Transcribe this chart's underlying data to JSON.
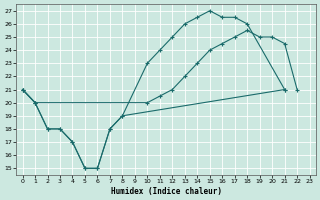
{
  "xlabel": "Humidex (Indice chaleur)",
  "xlim": [
    -0.5,
    23.5
  ],
  "ylim": [
    14.5,
    27.5
  ],
  "xticks": [
    0,
    1,
    2,
    3,
    4,
    5,
    6,
    7,
    8,
    9,
    10,
    11,
    12,
    13,
    14,
    15,
    16,
    17,
    18,
    19,
    20,
    21,
    22,
    23
  ],
  "yticks": [
    15,
    16,
    17,
    18,
    19,
    20,
    21,
    22,
    23,
    24,
    25,
    26,
    27
  ],
  "background_color": "#cce8e0",
  "line_color": "#1a6b6b",
  "grid_color": "#ffffff",
  "line1": {
    "x": [
      0,
      1,
      2,
      3,
      4,
      5,
      6,
      7,
      8,
      21
    ],
    "y": [
      21,
      20,
      18,
      18,
      17,
      15,
      15,
      18,
      19,
      21
    ]
  },
  "line2": {
    "x": [
      0,
      1,
      2,
      3,
      4,
      5,
      6,
      7,
      8,
      10,
      11,
      12,
      13,
      14,
      15,
      16,
      17,
      18,
      21
    ],
    "y": [
      21,
      20,
      18,
      18,
      17,
      15,
      15,
      18,
      19,
      23,
      24,
      25,
      26,
      26.5,
      27,
      26.5,
      26.5,
      26,
      21
    ]
  },
  "line3": {
    "x": [
      0,
      1,
      10,
      11,
      12,
      13,
      14,
      15,
      16,
      17,
      18,
      19,
      20,
      21,
      22
    ],
    "y": [
      21,
      20,
      20,
      20.5,
      21,
      22,
      23,
      24,
      24.5,
      25,
      25.5,
      25,
      25,
      24.5,
      21
    ]
  }
}
